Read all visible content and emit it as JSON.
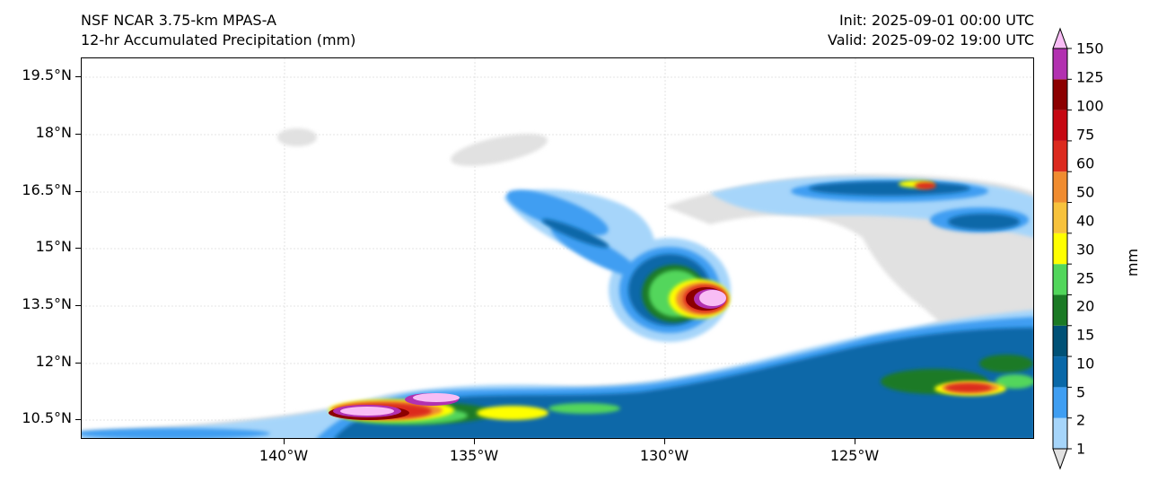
{
  "header": {
    "model": "NSF NCAR 3.75-km MPAS-A",
    "field": "12-hr Accumulated Precipitation (mm)",
    "init": "Init: 2025-09-01 00:00 UTC",
    "valid": "Valid: 2025-09-02 19:00 UTC"
  },
  "axes": {
    "lon_ticks": [
      "140°W",
      "135°W",
      "130°W",
      "125°W"
    ],
    "lat_ticks": [
      "19.5°N",
      "18°N",
      "16.5°N",
      "15°N",
      "13.5°N",
      "12°N",
      "10.5°N"
    ],
    "lon_values": [
      -140,
      -135,
      -130,
      -125
    ],
    "lat_values": [
      19.5,
      18,
      16.5,
      15,
      13.5,
      12,
      10.5
    ],
    "extent": {
      "lon_min": -145.3,
      "lon_max": -120.2,
      "lat_min": 10.0,
      "lat_max": 20.0
    }
  },
  "colorbar": {
    "unit": "mm",
    "levels": [
      "1",
      "2",
      "5",
      "10",
      "15",
      "20",
      "25",
      "30",
      "40",
      "50",
      "60",
      "75",
      "100",
      "125",
      "150"
    ],
    "colors": [
      "#e1e1e1",
      "#a6d5fa",
      "#3f9ef2",
      "#0968a8",
      "#005176",
      "#1b7a25",
      "#52d65b",
      "#ffff00",
      "#f7c23c",
      "#f08c30",
      "#dc2a1e",
      "#c60812",
      "#8c0000",
      "#b231b0",
      "#f8bdf5"
    ]
  }
}
